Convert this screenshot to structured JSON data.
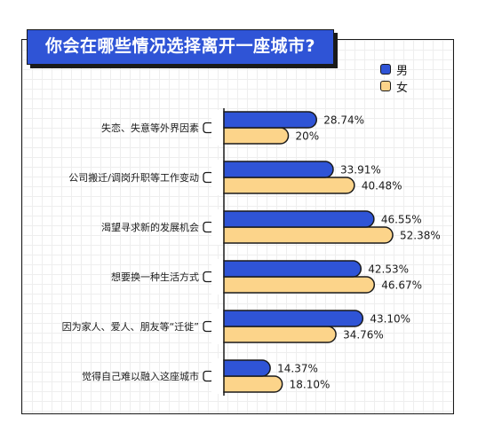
{
  "chart_data": {
    "type": "bar",
    "orientation": "horizontal",
    "title": "你会在哪些情况选择离开一座城市?",
    "categories": [
      "失恋、失意等外界因素",
      "公司搬迁/调岗升职等工作变动",
      "渴望寻求新的发展机会",
      "想要换一种生活方式",
      "因为家人、爱人、朋友等“迁徙”",
      "觉得自己难以融入这座城市"
    ],
    "series": [
      {
        "name": "男",
        "color": "#2f54d6",
        "values": [
          28.74,
          33.91,
          46.55,
          42.53,
          43.1,
          14.37
        ],
        "labels": [
          "28.74%",
          "33.91%",
          "46.55%",
          "42.53%",
          "43.10%",
          "14.37%"
        ]
      },
      {
        "name": "女",
        "color": "#fcd48a",
        "values": [
          20,
          40.48,
          52.38,
          46.67,
          34.76,
          18.1
        ],
        "labels": [
          "20%",
          "40.48%",
          "52.38%",
          "46.67%",
          "34.76%",
          "18.10%"
        ]
      }
    ],
    "xlim": [
      0,
      60
    ],
    "grid": false,
    "legend": "top-right"
  }
}
